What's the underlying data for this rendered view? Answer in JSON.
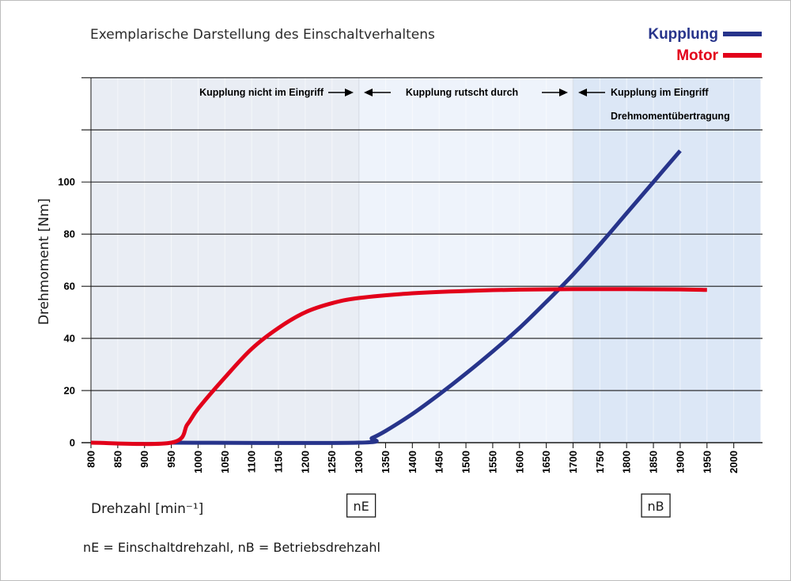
{
  "chart_data": {
    "type": "line",
    "title": "Exemplarische Darstellung des Einschaltverhaltens",
    "xlabel": "Drehzahl [min⁻¹]",
    "ylabel": "Drehmoment [Nm]",
    "xlim": [
      800,
      2050
    ],
    "ylim": [
      0,
      140
    ],
    "x_ticks": [
      "800",
      "850",
      "900",
      "950",
      "1000",
      "1050",
      "1100",
      "1150",
      "1200",
      "1250",
      "1300",
      "1350",
      "1400",
      "1450",
      "1500",
      "1550",
      "1600",
      "1650",
      "1700",
      "1750",
      "1800",
      "1850",
      "1900",
      "1950",
      "2000"
    ],
    "y_ticks": [
      0,
      20,
      40,
      60,
      80,
      100
    ],
    "grid": "horizontal",
    "legend_position": "top-right",
    "series": [
      {
        "name": "Kupplung",
        "color": "#27348b",
        "x": [
          950,
          1300,
          1325,
          1350,
          1400,
          1450,
          1500,
          1550,
          1600,
          1650,
          1700,
          1750,
          1800,
          1850,
          1900
        ],
        "y": [
          0,
          0,
          1.8,
          4.5,
          11,
          18.5,
          26.5,
          35,
          44,
          54,
          64.5,
          76,
          88,
          100,
          112
        ]
      },
      {
        "name": "Motor",
        "color": "#e2001a",
        "x": [
          800,
          950,
          980,
          1000,
          1050,
          1100,
          1150,
          1200,
          1250,
          1300,
          1400,
          1500,
          1600,
          1700,
          1800,
          1900,
          1950
        ],
        "y": [
          0,
          0,
          7,
          13,
          25,
          36,
          44,
          50,
          53.5,
          55.5,
          57.3,
          58.2,
          58.7,
          58.9,
          58.9,
          58.8,
          58.6
        ]
      }
    ],
    "zones": [
      {
        "from": 800,
        "to": 1300,
        "label": "Kupplung nicht im Eingriff",
        "color": "#e9edf4"
      },
      {
        "from": 1300,
        "to": 1700,
        "label": "Kupplung rutscht durch",
        "color": "#eef3fb"
      },
      {
        "from": 1700,
        "to": 2050,
        "label": "Kupplung im Eingriff",
        "sublabel": "Drehmomentübertragung",
        "color": "#dce7f6"
      }
    ],
    "markers": [
      {
        "x": 1300,
        "label": "nE"
      },
      {
        "x": 1850,
        "label": "nB"
      }
    ],
    "footnote": "nE = Einschaltdrehzahl, nB = Betriebsdrehzahl"
  }
}
